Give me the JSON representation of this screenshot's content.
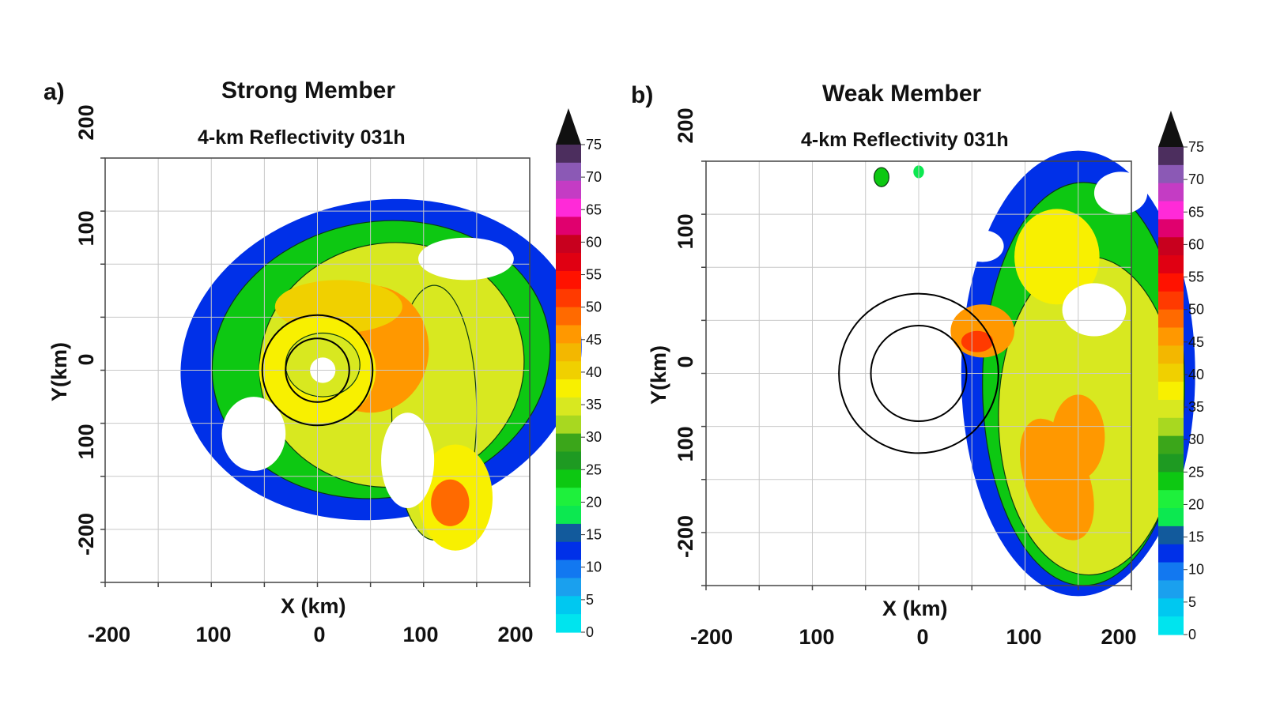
{
  "colorbar": {
    "ticks": [
      "75",
      "70",
      "65",
      "60",
      "55",
      "50",
      "45",
      "40",
      "35",
      "30",
      "25",
      "20",
      "15",
      "10",
      "5",
      "0"
    ],
    "colors": [
      "#111111",
      "#4c2e5e",
      "#8b59b5",
      "#c43cc4",
      "#ff2ad8",
      "#e0006e",
      "#c8001e",
      "#e00012",
      "#ff1200",
      "#ff3a00",
      "#ff6a00",
      "#ff9800",
      "#f3b700",
      "#f0d000",
      "#f8f000",
      "#d8e820",
      "#a8d820",
      "#3ba61a",
      "#1e9a22",
      "#0dc812",
      "#1ef03c",
      "#0ce850",
      "#125a9c",
      "#0030e8",
      "#1278f0",
      "#1aa0ee",
      "#00c8f0",
      "#00e4ee"
    ]
  },
  "chart_data": [
    {
      "type": "heatmap",
      "panel_label": "a)",
      "title": "Strong Member",
      "subtitle": "4-km Reflectivity 031h",
      "xlabel": "X (km)",
      "ylabel": "Y(km)",
      "x_ticks": [
        "-200",
        "100",
        "0",
        "100",
        "200"
      ],
      "x_tick_values": [
        -200,
        -100,
        0,
        100,
        200
      ],
      "y_ticks": [
        "200",
        "100",
        "0",
        "100",
        "-200"
      ],
      "y_tick_values": [
        200,
        100,
        0,
        -100,
        -200
      ],
      "xlim": [
        -200,
        200
      ],
      "ylim": [
        -200,
        200
      ],
      "grid": true,
      "colorbar_range": [
        0,
        75
      ],
      "colorbar_unit_step": 5,
      "range_rings_km": [
        30,
        52
      ],
      "blobs": [
        {
          "cx": 60,
          "cy": 10,
          "rx": 190,
          "ry": 150,
          "rot": 10,
          "dbz": 12
        },
        {
          "cx": 60,
          "cy": 10,
          "rx": 160,
          "ry": 130,
          "rot": 10,
          "dbz": 22
        },
        {
          "cx": 70,
          "cy": 5,
          "rx": 125,
          "ry": 115,
          "rot": 10,
          "dbz": 32
        },
        {
          "cx": 110,
          "cy": -40,
          "rx": 40,
          "ry": 120,
          "rot": 0,
          "dbz": 30
        },
        {
          "cx": 130,
          "cy": -120,
          "rx": 35,
          "ry": 50,
          "rot": 0,
          "dbz": 33
        },
        {
          "cx": 125,
          "cy": -125,
          "rx": 18,
          "ry": 22,
          "rot": 0,
          "dbz": 43
        },
        {
          "cx": 50,
          "cy": 20,
          "rx": 55,
          "ry": 60,
          "rot": 0,
          "dbz": 40
        },
        {
          "cx": 30,
          "cy": 0,
          "rx": 22,
          "ry": 35,
          "rot": 0,
          "dbz": 50
        },
        {
          "cx": 20,
          "cy": 60,
          "rx": 60,
          "ry": 25,
          "rot": 0,
          "dbz": 37
        },
        {
          "cx": 0,
          "cy": 0,
          "rx": 55,
          "ry": 50,
          "rot": 0,
          "dbz": 34
        },
        {
          "cx": 5,
          "cy": 5,
          "rx": 35,
          "ry": 30,
          "rot": 0,
          "dbz": 30
        },
        {
          "cx": 5,
          "cy": 0,
          "rx": 12,
          "ry": 12,
          "rot": 0,
          "dbz": -1
        },
        {
          "cx": 140,
          "cy": 105,
          "rx": 45,
          "ry": 20,
          "rot": 0,
          "dbz": -1
        },
        {
          "cx": 85,
          "cy": -85,
          "rx": 25,
          "ry": 45,
          "rot": 0,
          "dbz": -1
        },
        {
          "cx": -60,
          "cy": -60,
          "rx": 30,
          "ry": 35,
          "rot": 0,
          "dbz": -1
        }
      ]
    },
    {
      "type": "heatmap",
      "panel_label": "b)",
      "title": "Weak Member",
      "subtitle": "4-km Reflectivity 031h",
      "xlabel": "X (km)",
      "ylabel": "Y(km)",
      "x_ticks": [
        "-200",
        "100",
        "0",
        "100",
        "200"
      ],
      "x_tick_values": [
        -200,
        -100,
        0,
        100,
        200
      ],
      "y_ticks": [
        "200",
        "100",
        "0",
        "100",
        "-200"
      ],
      "y_tick_values": [
        200,
        100,
        0,
        -100,
        -200
      ],
      "xlim": [
        -200,
        200
      ],
      "ylim": [
        -200,
        200
      ],
      "grid": true,
      "colorbar_range": [
        0,
        75
      ],
      "colorbar_unit_step": 5,
      "range_rings_km": [
        45,
        75
      ],
      "blobs": [
        {
          "cx": 150,
          "cy": 0,
          "rx": 110,
          "ry": 210,
          "rot": 0,
          "dbz": 12
        },
        {
          "cx": 155,
          "cy": -10,
          "rx": 95,
          "ry": 190,
          "rot": 0,
          "dbz": 22
        },
        {
          "cx": 160,
          "cy": -40,
          "rx": 85,
          "ry": 150,
          "rot": 0,
          "dbz": 32
        },
        {
          "cx": 130,
          "cy": 110,
          "rx": 40,
          "ry": 45,
          "rot": 0,
          "dbz": 34
        },
        {
          "cx": 130,
          "cy": -100,
          "rx": 30,
          "ry": 60,
          "rot": 20,
          "dbz": 42
        },
        {
          "cx": 150,
          "cy": -60,
          "rx": 25,
          "ry": 40,
          "rot": 0,
          "dbz": 40
        },
        {
          "cx": 60,
          "cy": 40,
          "rx": 30,
          "ry": 25,
          "rot": 0,
          "dbz": 40
        },
        {
          "cx": 55,
          "cy": 30,
          "rx": 15,
          "ry": 10,
          "rot": 0,
          "dbz": 47
        },
        {
          "cx": 165,
          "cy": 60,
          "rx": 30,
          "ry": 25,
          "rot": 0,
          "dbz": -1
        },
        {
          "cx": 190,
          "cy": 170,
          "rx": 25,
          "ry": 20,
          "rot": 0,
          "dbz": -1
        },
        {
          "cx": 60,
          "cy": 120,
          "rx": 20,
          "ry": 15,
          "rot": 0,
          "dbz": -1
        },
        {
          "cx": -35,
          "cy": 185,
          "rx": 7,
          "ry": 9,
          "rot": 0,
          "dbz": 22
        },
        {
          "cx": 0,
          "cy": 190,
          "rx": 5,
          "ry": 6,
          "rot": 0,
          "dbz": 15
        }
      ]
    }
  ]
}
